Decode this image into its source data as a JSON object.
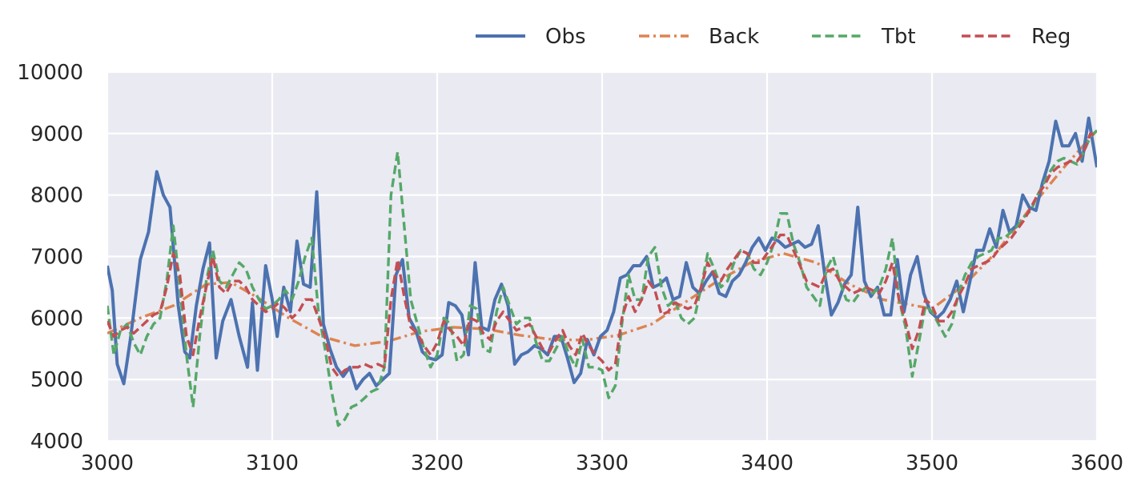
{
  "chart_data": {
    "type": "line",
    "title": "",
    "xlabel": "",
    "ylabel": "",
    "xlim": [
      3000,
      3600
    ],
    "ylim": [
      4000,
      10000
    ],
    "xticks": [
      3000,
      3100,
      3200,
      3300,
      3400,
      3500,
      3600
    ],
    "yticks": [
      4000,
      5000,
      6000,
      7000,
      8000,
      9000,
      10000
    ],
    "grid": true,
    "background": "#eaeaf2",
    "legend_position": "top-right",
    "series": [
      {
        "name": "Obs",
        "color": "#4c72b0",
        "style": "solid",
        "x": [
          3000,
          3003,
          3006,
          3010,
          3014,
          3020,
          3025,
          3030,
          3034,
          3038,
          3043,
          3047,
          3050,
          3054,
          3058,
          3062,
          3066,
          3070,
          3075,
          3080,
          3085,
          3088,
          3091,
          3096,
          3100,
          3103,
          3107,
          3111,
          3115,
          3119,
          3123,
          3127,
          3131,
          3135,
          3139,
          3143,
          3147,
          3151,
          3155,
          3159,
          3163,
          3167,
          3171,
          3175,
          3179,
          3183,
          3187,
          3191,
          3195,
          3199,
          3203,
          3207,
          3211,
          3215,
          3219,
          3223,
          3227,
          3231,
          3235,
          3239,
          3243,
          3247,
          3251,
          3255,
          3259,
          3263,
          3267,
          3271,
          3275,
          3279,
          3283,
          3287,
          3291,
          3295,
          3299,
          3303,
          3307,
          3311,
          3315,
          3319,
          3323,
          3327,
          3331,
          3335,
          3339,
          3343,
          3347,
          3351,
          3355,
          3359,
          3363,
          3367,
          3371,
          3375,
          3379,
          3383,
          3387,
          3391,
          3395,
          3399,
          3403,
          3407,
          3411,
          3415,
          3419,
          3423,
          3427,
          3431,
          3435,
          3439,
          3443,
          3447,
          3451,
          3455,
          3459,
          3463,
          3467,
          3471,
          3475,
          3479,
          3483,
          3487,
          3491,
          3495,
          3499,
          3503,
          3507,
          3511,
          3515,
          3519,
          3523,
          3527,
          3531,
          3535,
          3539,
          3543,
          3547,
          3551,
          3555,
          3559,
          3563,
          3567,
          3571,
          3575,
          3579,
          3583,
          3587,
          3591,
          3595,
          3600
        ],
        "y": [
          6850,
          6450,
          5250,
          4930,
          5650,
          6950,
          7400,
          8380,
          8000,
          7800,
          6200,
          5450,
          5350,
          6200,
          6800,
          7220,
          5350,
          5950,
          6300,
          5700,
          5200,
          6250,
          5150,
          6850,
          6300,
          5700,
          6500,
          6100,
          7250,
          6550,
          6500,
          8050,
          5900,
          5500,
          5200,
          5050,
          5200,
          4850,
          5000,
          5100,
          4900,
          5000,
          5100,
          6700,
          6950,
          6000,
          5800,
          5450,
          5350,
          5320,
          5400,
          6250,
          6200,
          6050,
          5400,
          6900,
          5850,
          5800,
          6300,
          6550,
          6200,
          5250,
          5400,
          5450,
          5550,
          5500,
          5400,
          5700,
          5700,
          5350,
          4950,
          5100,
          5650,
          5400,
          5700,
          5800,
          6100,
          6650,
          6700,
          6850,
          6850,
          7000,
          6500,
          6550,
          6650,
          6300,
          6350,
          6900,
          6500,
          6400,
          6600,
          6750,
          6400,
          6350,
          6600,
          6700,
          6900,
          7150,
          7300,
          7100,
          7300,
          7250,
          7150,
          7200,
          7250,
          7150,
          7200,
          7500,
          6700,
          6050,
          6250,
          6550,
          6700,
          7800,
          6600,
          6350,
          6500,
          6050,
          6050,
          6950,
          6100,
          6700,
          7000,
          6400,
          6100,
          6000,
          6100,
          6300,
          6600,
          6100,
          6600,
          7100,
          7100,
          7450,
          7150,
          7750,
          7400,
          7500,
          8000,
          7800,
          7750,
          8200,
          8550,
          9200,
          8800,
          8800,
          9000,
          8550,
          9250,
          8450
        ]
      },
      {
        "name": "Back",
        "color": "#dd8452",
        "style": "dashdot",
        "x": [
          3000,
          3020,
          3040,
          3060,
          3075,
          3090,
          3110,
          3130,
          3150,
          3170,
          3190,
          3210,
          3230,
          3250,
          3270,
          3290,
          3310,
          3330,
          3350,
          3370,
          3390,
          3410,
          3430,
          3450,
          3470,
          3490,
          3500,
          3520,
          3540,
          3560,
          3580,
          3600
        ],
        "y": [
          5750,
          6000,
          6200,
          6550,
          6580,
          6350,
          6000,
          5700,
          5550,
          5620,
          5780,
          5850,
          5820,
          5720,
          5650,
          5640,
          5720,
          5900,
          6250,
          6600,
          6900,
          7050,
          6900,
          6550,
          6300,
          6200,
          6150,
          6550,
          7100,
          7800,
          8450,
          9050
        ]
      },
      {
        "name": "Tbt",
        "color": "#55a868",
        "style": "dashed",
        "x": [
          3000,
          3004,
          3008,
          3012,
          3016,
          3020,
          3024,
          3028,
          3032,
          3036,
          3040,
          3044,
          3048,
          3052,
          3056,
          3060,
          3064,
          3068,
          3072,
          3076,
          3080,
          3084,
          3088,
          3092,
          3096,
          3100,
          3104,
          3108,
          3112,
          3116,
          3120,
          3124,
          3128,
          3132,
          3136,
          3140,
          3144,
          3148,
          3152,
          3156,
          3160,
          3164,
          3168,
          3172,
          3176,
          3180,
          3184,
          3188,
          3192,
          3196,
          3200,
          3204,
          3208,
          3212,
          3216,
          3220,
          3224,
          3228,
          3232,
          3236,
          3240,
          3244,
          3248,
          3252,
          3256,
          3260,
          3264,
          3268,
          3272,
          3276,
          3280,
          3284,
          3288,
          3292,
          3296,
          3300,
          3304,
          3308,
          3312,
          3316,
          3320,
          3324,
          3328,
          3332,
          3336,
          3340,
          3344,
          3348,
          3352,
          3356,
          3360,
          3364,
          3368,
          3372,
          3376,
          3380,
          3384,
          3388,
          3392,
          3396,
          3400,
          3404,
          3408,
          3412,
          3416,
          3420,
          3424,
          3428,
          3432,
          3436,
          3440,
          3444,
          3448,
          3452,
          3456,
          3460,
          3464,
          3468,
          3472,
          3476,
          3480,
          3484,
          3488,
          3492,
          3496,
          3500,
          3504,
          3508,
          3512,
          3516,
          3520,
          3524,
          3528,
          3532,
          3536,
          3540,
          3544,
          3548,
          3552,
          3556,
          3560,
          3564,
          3568,
          3572,
          3576,
          3580,
          3584,
          3588,
          3592,
          3596,
          3600
        ],
        "y": [
          6200,
          5400,
          5800,
          5900,
          5600,
          5400,
          5700,
          5900,
          6000,
          6600,
          7500,
          6500,
          5400,
          4550,
          5700,
          6600,
          7100,
          6600,
          6500,
          6700,
          6900,
          6800,
          6500,
          6300,
          6150,
          6200,
          6300,
          6450,
          6300,
          6600,
          7000,
          7300,
          6100,
          5500,
          4800,
          4250,
          4350,
          4550,
          4600,
          4700,
          4800,
          4850,
          5200,
          8000,
          8700,
          7500,
          6300,
          5900,
          5500,
          5200,
          5400,
          6000,
          5900,
          5300,
          5400,
          6200,
          6150,
          5500,
          5450,
          6100,
          6500,
          6200,
          5900,
          6000,
          6000,
          5600,
          5300,
          5300,
          5500,
          5700,
          5400,
          5200,
          5650,
          5200,
          5200,
          5150,
          4700,
          4900,
          5900,
          6700,
          6300,
          6300,
          7000,
          7150,
          6500,
          6200,
          6300,
          6000,
          5900,
          6000,
          6500,
          7050,
          6800,
          6500,
          6600,
          6900,
          7100,
          7050,
          6800,
          6700,
          6900,
          7200,
          7700,
          7700,
          7200,
          6900,
          6500,
          6350,
          6200,
          6800,
          7000,
          6600,
          6300,
          6250,
          6400,
          6500,
          6400,
          6500,
          6800,
          7300,
          6300,
          5850,
          5050,
          5600,
          6200,
          6100,
          5900,
          5700,
          5900,
          6400,
          6700,
          6900,
          7000,
          7050,
          7100,
          7300,
          7300,
          7400,
          7500,
          7650,
          7750,
          8000,
          8200,
          8400,
          8550,
          8600,
          8550,
          8500,
          8700,
          8950,
          9050
        ]
      },
      {
        "name": "Reg",
        "color": "#c44e52",
        "style": "dashed",
        "x": [
          3000,
          3004,
          3008,
          3012,
          3016,
          3020,
          3024,
          3028,
          3032,
          3036,
          3040,
          3044,
          3048,
          3052,
          3056,
          3060,
          3064,
          3068,
          3072,
          3076,
          3080,
          3084,
          3088,
          3092,
          3096,
          3100,
          3104,
          3108,
          3112,
          3116,
          3120,
          3124,
          3128,
          3132,
          3136,
          3140,
          3144,
          3148,
          3152,
          3156,
          3160,
          3164,
          3168,
          3172,
          3176,
          3180,
          3184,
          3188,
          3192,
          3196,
          3200,
          3204,
          3208,
          3212,
          3216,
          3220,
          3224,
          3228,
          3232,
          3236,
          3240,
          3244,
          3248,
          3252,
          3256,
          3260,
          3264,
          3268,
          3272,
          3276,
          3280,
          3284,
          3288,
          3292,
          3296,
          3300,
          3304,
          3308,
          3312,
          3316,
          3320,
          3324,
          3328,
          3332,
          3336,
          3340,
          3344,
          3348,
          3352,
          3356,
          3360,
          3364,
          3368,
          3372,
          3376,
          3380,
          3384,
          3388,
          3392,
          3396,
          3400,
          3404,
          3408,
          3412,
          3416,
          3420,
          3424,
          3428,
          3432,
          3436,
          3440,
          3444,
          3448,
          3452,
          3456,
          3460,
          3464,
          3468,
          3472,
          3476,
          3480,
          3484,
          3488,
          3492,
          3496,
          3500,
          3504,
          3508,
          3512,
          3516,
          3520,
          3524,
          3528,
          3532,
          3536,
          3540,
          3544,
          3548,
          3552,
          3556,
          3560,
          3564,
          3568,
          3572,
          3576,
          3580,
          3584,
          3588,
          3592,
          3596,
          3600
        ],
        "y": [
          5950,
          5700,
          5800,
          5850,
          5750,
          5850,
          5950,
          6050,
          6100,
          6500,
          7050,
          6700,
          5700,
          5400,
          6000,
          6500,
          7000,
          6500,
          6400,
          6600,
          6600,
          6500,
          6300,
          6200,
          6100,
          6150,
          6250,
          6150,
          6000,
          6100,
          6300,
          6300,
          6000,
          5700,
          5200,
          5050,
          5150,
          5200,
          5200,
          5250,
          5200,
          5250,
          5200,
          6300,
          6950,
          6350,
          5850,
          5750,
          5550,
          5400,
          5600,
          5950,
          5800,
          5700,
          5550,
          6000,
          5950,
          5750,
          5650,
          5950,
          6100,
          5950,
          5800,
          5850,
          5900,
          5700,
          5500,
          5450,
          5650,
          5800,
          5550,
          5400,
          5750,
          5550,
          5400,
          5300,
          5150,
          5250,
          6000,
          6350,
          6100,
          6300,
          6600,
          6450,
          6050,
          6100,
          6250,
          6200,
          6150,
          6200,
          6500,
          6900,
          6700,
          6600,
          6800,
          6950,
          7100,
          7050,
          6900,
          6900,
          7050,
          7200,
          7350,
          7350,
          7100,
          6850,
          6600,
          6550,
          6500,
          6750,
          6800,
          6600,
          6500,
          6400,
          6450,
          6500,
          6450,
          6400,
          6600,
          6900,
          6300,
          5950,
          5500,
          5800,
          6300,
          6200,
          5950,
          5950,
          6100,
          6350,
          6550,
          6800,
          6850,
          6900,
          6950,
          7100,
          7200,
          7300,
          7450,
          7600,
          7800,
          8000,
          8150,
          8350,
          8450,
          8500,
          8550,
          8550,
          8700,
          9000,
          8950
        ]
      }
    ]
  }
}
